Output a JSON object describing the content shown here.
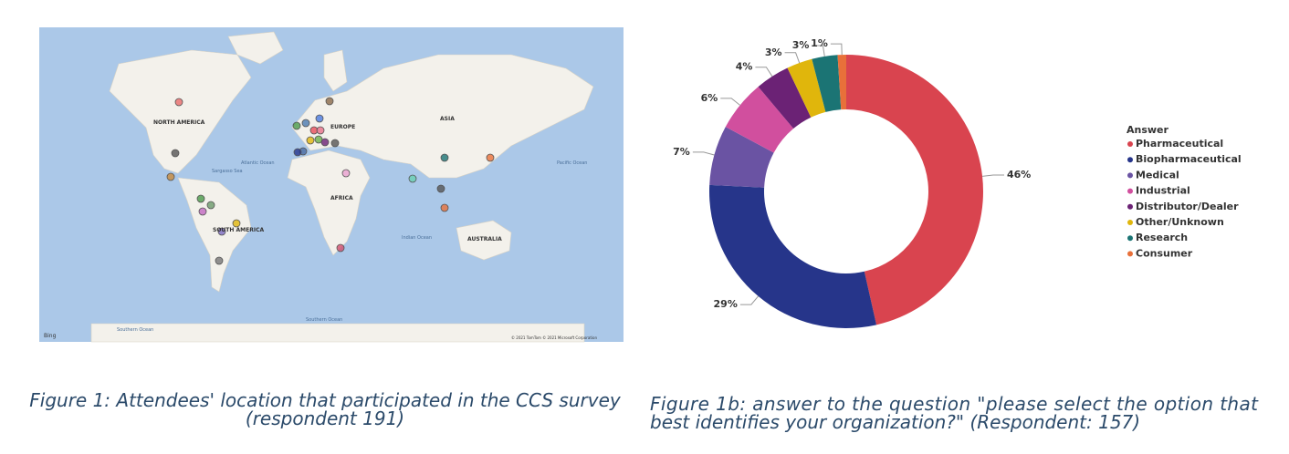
{
  "map": {
    "labels": [
      "NORTH AMERICA",
      "EUROPE",
      "ASIA",
      "AFRICA",
      "SOUTH AMERICA",
      "AUSTRALIA",
      "Atlantic Ocean",
      "Pacific Ocean",
      "Indian Ocean",
      "Southern Ocean",
      "Southern Ocean",
      "Sargasso Sea",
      "Bing",
      "© 2021 TomTom © 2021 Microsoft Corporation"
    ]
  },
  "chart_data": {
    "type": "donut",
    "legend_title": "Answer",
    "categories": [
      "Pharmaceutical",
      "Biopharmaceutical",
      "Medical",
      "Industrial",
      "Distributor/Dealer",
      "Other/Unknown",
      "Research",
      "Consumer"
    ],
    "values": [
      46,
      29,
      7,
      6,
      4,
      3,
      3,
      1
    ],
    "value_labels": [
      "46%",
      "29%",
      "7%",
      "6%",
      "4%",
      "3%",
      "3%",
      "1%"
    ],
    "colors": [
      "#d9444f",
      "#26358a",
      "#6a53a3",
      "#d14f9e",
      "#6b2275",
      "#e0b60c",
      "#1b7474",
      "#e8703a"
    ],
    "legend": "right"
  },
  "captions": [
    {
      "lines": [
        "Figure 1: Attendees' location that participated in the CCS survey",
        "(respondent 191)"
      ]
    },
    {
      "lines": [
        "Figure 1b: answer to the question \"please select the option that",
        "best identifies your organization?\" (Respondent: 157)"
      ]
    }
  ]
}
